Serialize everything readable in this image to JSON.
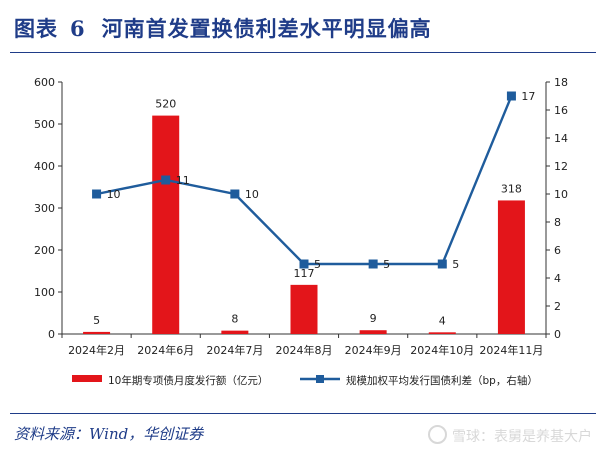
{
  "header": {
    "label": "图表",
    "number": "6",
    "title": "河南首发置换债利差水平明显偏高"
  },
  "footer": {
    "source": "资料来源：Wind，华创证券",
    "watermark": "雪球：表舅是养基大户"
  },
  "colors": {
    "bar": "#e3151a",
    "line": "#1f5c9c",
    "title": "#1f3c88"
  },
  "chart_data": {
    "type": "bar",
    "categories": [
      "2024年2月",
      "2024年6月",
      "2024年7月",
      "2024年8月",
      "2024年9月",
      "2024年10月",
      "2024年11月"
    ],
    "ylim": [
      0,
      600
    ],
    "y_ticks": [
      0,
      100,
      200,
      300,
      400,
      500,
      600
    ],
    "y2lim": [
      0,
      18
    ],
    "y2_ticks": [
      0,
      2,
      4,
      6,
      8,
      10,
      12,
      14,
      16,
      18
    ],
    "grid": false,
    "legend_position": "bottom",
    "series": [
      {
        "name": "10年期专项债月度发行额（亿元）",
        "type": "bar",
        "axis": "left",
        "values": [
          5,
          520,
          8,
          117,
          9,
          4,
          318
        ],
        "labels": [
          "5",
          "520",
          "8",
          "117",
          "9",
          "4",
          "318"
        ]
      },
      {
        "name": "规模加权平均发行国债利差（bp，右轴）",
        "type": "line",
        "axis": "right",
        "values": [
          10,
          11,
          10,
          5,
          5,
          5,
          17
        ],
        "labels": [
          "10",
          "11",
          "10",
          "5",
          "5",
          "5",
          "17"
        ]
      }
    ]
  }
}
